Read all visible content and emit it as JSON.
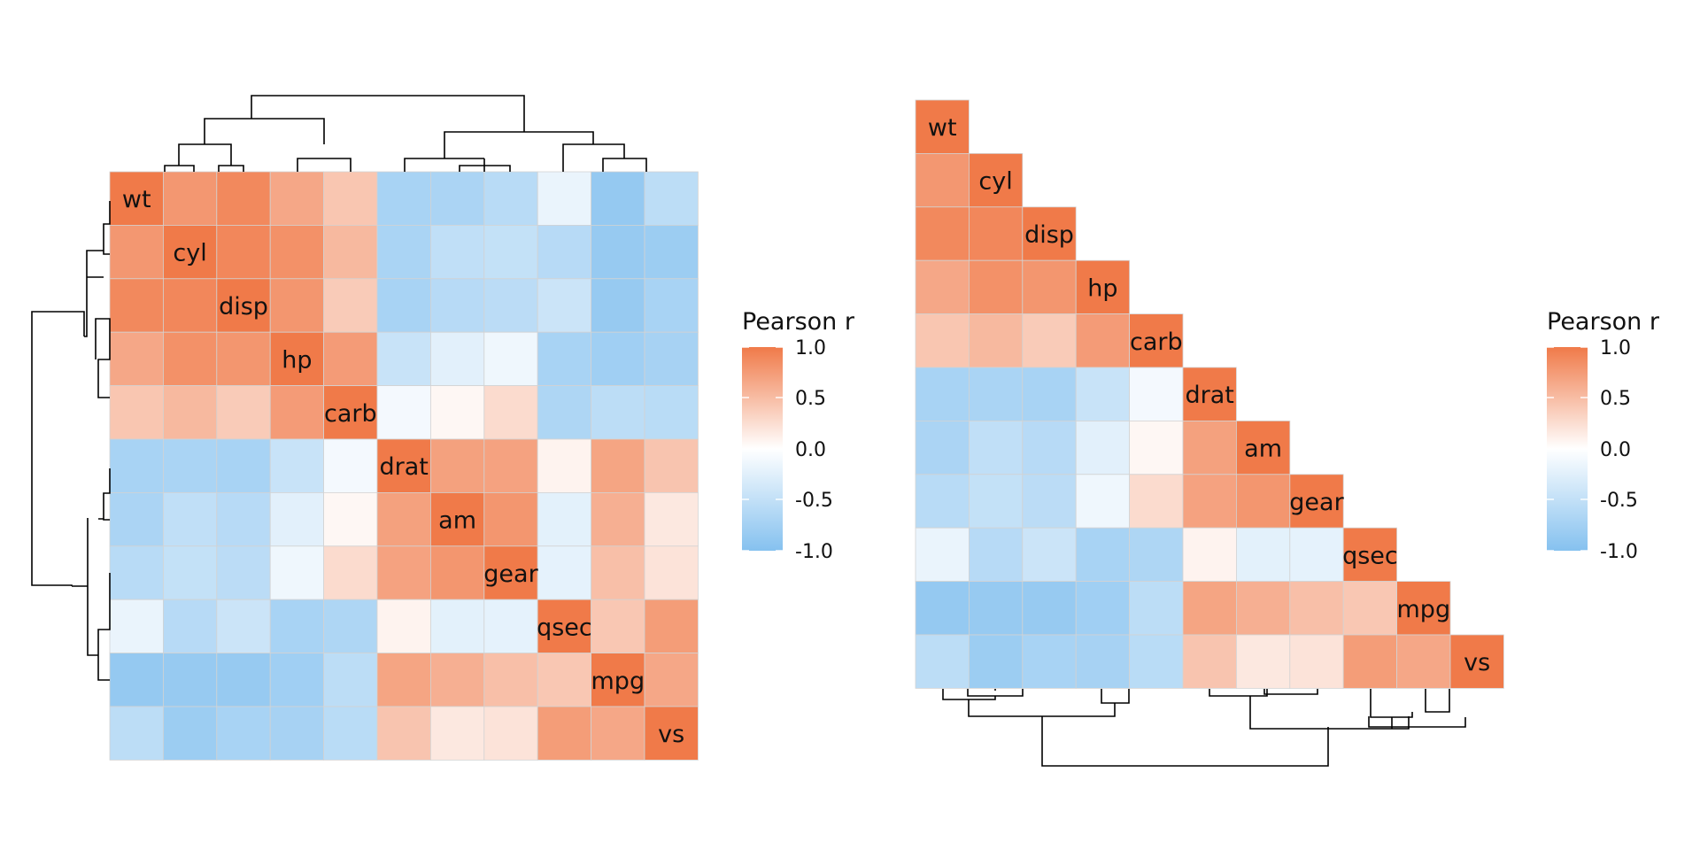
{
  "chart_data": [
    {
      "type": "heatmap",
      "title": "",
      "variant": "full clustered matrix with row and column dendrograms",
      "variables": [
        "wt",
        "cyl",
        "disp",
        "hp",
        "carb",
        "drat",
        "am",
        "gear",
        "qsec",
        "mpg",
        "vs"
      ],
      "values": [
        [
          1.0,
          0.78,
          0.89,
          0.66,
          0.43,
          -0.71,
          -0.69,
          -0.58,
          -0.17,
          -0.87,
          -0.55
        ],
        [
          0.78,
          1.0,
          0.9,
          0.83,
          0.53,
          -0.7,
          -0.52,
          -0.49,
          -0.59,
          -0.85,
          -0.81
        ],
        [
          0.89,
          0.9,
          1.0,
          0.79,
          0.39,
          -0.71,
          -0.59,
          -0.56,
          -0.43,
          -0.85,
          -0.71
        ],
        [
          0.66,
          0.83,
          0.79,
          1.0,
          0.75,
          -0.45,
          -0.24,
          -0.13,
          -0.71,
          -0.78,
          -0.72
        ],
        [
          0.43,
          0.53,
          0.39,
          0.75,
          1.0,
          -0.09,
          0.06,
          0.27,
          -0.66,
          -0.55,
          -0.57
        ],
        [
          -0.71,
          -0.7,
          -0.71,
          -0.45,
          -0.09,
          1.0,
          0.71,
          0.7,
          0.09,
          0.68,
          0.44
        ],
        [
          -0.69,
          -0.52,
          -0.59,
          -0.24,
          0.06,
          0.71,
          1.0,
          0.79,
          -0.23,
          0.6,
          0.17
        ],
        [
          -0.58,
          -0.49,
          -0.56,
          -0.13,
          0.27,
          0.7,
          0.79,
          1.0,
          -0.21,
          0.48,
          0.21
        ],
        [
          -0.17,
          -0.59,
          -0.43,
          -0.71,
          -0.66,
          0.09,
          -0.23,
          -0.21,
          1.0,
          0.42,
          0.74
        ],
        [
          -0.87,
          -0.85,
          -0.85,
          -0.78,
          -0.55,
          0.68,
          0.6,
          0.48,
          0.42,
          1.0,
          0.66
        ],
        [
          -0.55,
          -0.81,
          -0.71,
          -0.72,
          -0.57,
          0.44,
          0.17,
          0.21,
          0.74,
          0.66,
          1.0
        ]
      ],
      "diagonal_labels": true,
      "legend": {
        "title": "Pearson r",
        "range": [
          -1.0,
          1.0
        ],
        "ticks": [
          "1.0",
          "0.5",
          "0.0",
          "-0.5",
          "-1.0"
        ],
        "low_color": "#85c1ef",
        "mid_color": "#ffffff",
        "high_color": "#f07a49",
        "position": "right"
      }
    },
    {
      "type": "heatmap",
      "title": "",
      "variant": "lower triangle with bottom dendrogram",
      "variables": [
        "wt",
        "cyl",
        "disp",
        "hp",
        "carb",
        "drat",
        "am",
        "gear",
        "qsec",
        "mpg",
        "vs"
      ],
      "values_source": "same correlation matrix as first heatmap, lower triangle only",
      "diagonal_labels": true,
      "legend": {
        "title": "Pearson r",
        "range": [
          -1.0,
          1.0
        ],
        "ticks": [
          "1.0",
          "0.5",
          "0.0",
          "-0.5",
          "-1.0"
        ],
        "low_color": "#85c1ef",
        "mid_color": "#ffffff",
        "high_color": "#f07a49",
        "position": "right"
      }
    }
  ]
}
